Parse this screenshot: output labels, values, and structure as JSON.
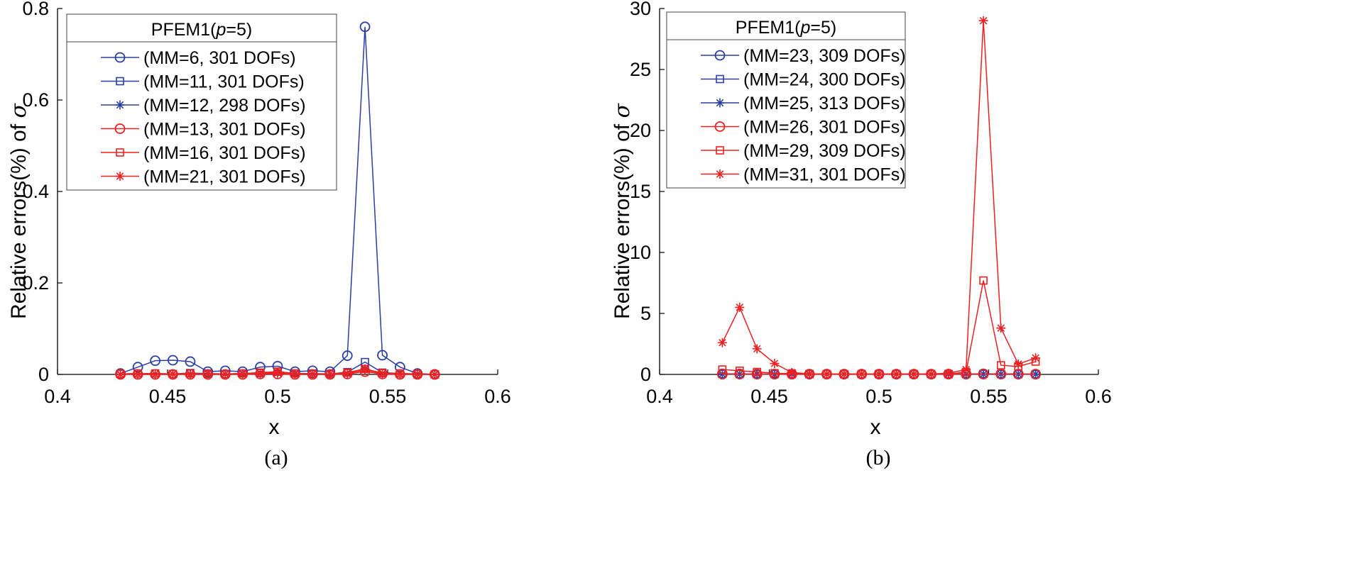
{
  "colors": {
    "blue": "#2a3ea6",
    "red": "#ee2020",
    "axis": "#000000",
    "legend_border": "#444444"
  },
  "chart_data": [
    {
      "type": "line",
      "caption": "(a)",
      "xlabel": "x",
      "ylabel_prefix": "Relative errors(%) of ",
      "ylabel_symbol": "σ",
      "xlim": [
        0.4,
        0.6
      ],
      "ylim": [
        0,
        0.8
      ],
      "xticks": [
        "0.4",
        "0.45",
        "0.5",
        "0.55",
        "0.6"
      ],
      "xtick_values": [
        0.4,
        0.45,
        0.5,
        0.55,
        0.6
      ],
      "yticks": [
        "0",
        "0.2",
        "0.4",
        "0.6",
        "0.8"
      ],
      "ytick_values": [
        0,
        0.2,
        0.4,
        0.6,
        0.8
      ],
      "legend_title_parts": [
        "PFEM1(",
        "p",
        "=5)"
      ],
      "legend_loc": "top-left",
      "x": [
        0.4286,
        0.4365,
        0.4444,
        0.4524,
        0.4603,
        0.4683,
        0.4762,
        0.4841,
        0.4921,
        0.5,
        0.5079,
        0.5159,
        0.5238,
        0.5317,
        0.5397,
        0.5476,
        0.5556,
        0.5635,
        0.5714
      ],
      "series": [
        {
          "name": "(MM=6, 301 DOFs)",
          "color": "blue",
          "marker": "circle",
          "values": [
            0.002,
            0.016,
            0.03,
            0.031,
            0.028,
            0.006,
            0.008,
            0.006,
            0.016,
            0.018,
            0.006,
            0.008,
            0.006,
            0.041,
            0.76,
            0.042,
            0.016,
            0.002,
            0.0
          ]
        },
        {
          "name": "(MM=11, 301 DOFs)",
          "color": "blue",
          "marker": "square",
          "values": [
            0.001,
            0.002,
            0.002,
            0.001,
            0.003,
            0.002,
            0.001,
            0.002,
            0.003,
            0.006,
            0.002,
            0.002,
            0.001,
            0.005,
            0.027,
            0.004,
            0.002,
            0.001,
            0.0
          ]
        },
        {
          "name": "(MM=12, 298 DOFs)",
          "color": "blue",
          "marker": "star",
          "values": [
            0.0,
            0.001,
            0.001,
            0.001,
            0.001,
            0.001,
            0.001,
            0.001,
            0.002,
            0.003,
            0.001,
            0.001,
            0.001,
            0.002,
            0.012,
            0.002,
            0.001,
            0.001,
            0.0
          ]
        },
        {
          "name": "(MM=13, 301 DOFs)",
          "color": "red",
          "marker": "circle",
          "values": [
            0.0,
            0.0,
            0.0,
            0.0,
            0.0,
            0.0,
            0.0,
            0.0,
            0.001,
            0.001,
            0.0,
            0.0,
            0.0,
            0.001,
            0.006,
            0.001,
            0.0,
            0.0,
            0.0
          ]
        },
        {
          "name": "(MM=16, 301 DOFs)",
          "color": "red",
          "marker": "square",
          "values": [
            0.001,
            0.002,
            0.002,
            0.001,
            0.002,
            0.001,
            0.001,
            0.002,
            0.004,
            0.006,
            0.002,
            0.001,
            0.001,
            0.004,
            0.012,
            0.003,
            0.002,
            0.001,
            0.0
          ]
        },
        {
          "name": "(MM=21, 301 DOFs)",
          "color": "red",
          "marker": "star",
          "values": [
            0.0,
            0.001,
            0.001,
            0.001,
            0.001,
            0.001,
            0.001,
            0.001,
            0.002,
            0.004,
            0.001,
            0.001,
            0.001,
            0.002,
            0.01,
            0.002,
            0.001,
            0.0,
            0.0
          ]
        }
      ]
    },
    {
      "type": "line",
      "caption": "(b)",
      "xlabel": "x",
      "ylabel_prefix": "Relative errors(%) of ",
      "ylabel_symbol": "σ",
      "xlim": [
        0.4,
        0.6
      ],
      "ylim": [
        0,
        30
      ],
      "xticks": [
        "0.4",
        "0.45",
        "0.5",
        "0.55",
        "0.6"
      ],
      "xtick_values": [
        0.4,
        0.45,
        0.5,
        0.55,
        0.6
      ],
      "yticks": [
        "0",
        "5",
        "10",
        "15",
        "20",
        "25",
        "30"
      ],
      "ytick_values": [
        0,
        5,
        10,
        15,
        20,
        25,
        30
      ],
      "legend_title_parts": [
        "PFEM1(",
        "p",
        "=5)"
      ],
      "legend_loc": "top-left",
      "x": [
        0.4286,
        0.4365,
        0.4444,
        0.4524,
        0.4603,
        0.4683,
        0.4762,
        0.4841,
        0.4921,
        0.5,
        0.5079,
        0.5159,
        0.5238,
        0.5317,
        0.5397,
        0.5476,
        0.5556,
        0.5635,
        0.5714
      ],
      "series": [
        {
          "name": "(MM=23, 309 DOFs)",
          "color": "blue",
          "marker": "circle",
          "values": [
            0.05,
            0.04,
            0.03,
            0.03,
            0.02,
            0.02,
            0.02,
            0.02,
            0.02,
            0.02,
            0.02,
            0.02,
            0.02,
            0.02,
            0.03,
            0.05,
            0.04,
            0.03,
            0.02
          ]
        },
        {
          "name": "(MM=24, 300 DOFs)",
          "color": "blue",
          "marker": "square",
          "values": [
            0.04,
            0.03,
            0.03,
            0.02,
            0.02,
            0.02,
            0.02,
            0.02,
            0.02,
            0.02,
            0.02,
            0.02,
            0.02,
            0.02,
            0.03,
            0.04,
            0.03,
            0.02,
            0.02
          ]
        },
        {
          "name": "(MM=25, 313 DOFs)",
          "color": "blue",
          "marker": "star",
          "values": [
            0.03,
            0.03,
            0.02,
            0.02,
            0.02,
            0.02,
            0.02,
            0.02,
            0.02,
            0.02,
            0.02,
            0.02,
            0.02,
            0.02,
            0.02,
            0.03,
            0.03,
            0.02,
            0.02
          ]
        },
        {
          "name": "(MM=26, 301 DOFs)",
          "color": "red",
          "marker": "circle",
          "values": [
            0.02,
            0.02,
            0.02,
            0.02,
            0.02,
            0.02,
            0.02,
            0.02,
            0.02,
            0.02,
            0.02,
            0.02,
            0.02,
            0.02,
            0.02,
            0.02,
            0.02,
            0.02,
            0.02
          ]
        },
        {
          "name": "(MM=29, 309 DOFs)",
          "color": "red",
          "marker": "square",
          "values": [
            0.4,
            0.3,
            0.2,
            0.1,
            0.05,
            0.03,
            0.02,
            0.02,
            0.02,
            0.02,
            0.02,
            0.02,
            0.02,
            0.03,
            0.2,
            7.7,
            0.75,
            0.65,
            1.05
          ]
        },
        {
          "name": "(MM=31, 301 DOFs)",
          "color": "red",
          "marker": "star",
          "values": [
            2.6,
            5.5,
            2.1,
            0.9,
            0.15,
            0.05,
            0.03,
            0.03,
            0.03,
            0.03,
            0.03,
            0.03,
            0.03,
            0.1,
            0.4,
            29.0,
            3.8,
            0.85,
            1.35
          ]
        }
      ]
    }
  ]
}
